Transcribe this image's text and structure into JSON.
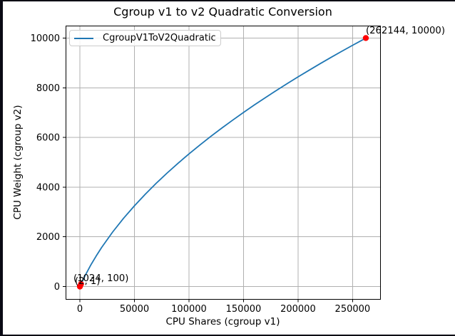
{
  "colors": {
    "frame": "#0a0a14",
    "background": "#ffffff",
    "grid": "#b0b0b0",
    "spine": "#000000",
    "series_line": "#1f77b4",
    "marker": "#ff0000",
    "legend_edge": "#cccccc"
  },
  "chart_data": {
    "type": "line",
    "title": "Cgroup v1 to v2 Quadratic Conversion",
    "xlabel": "CPU Shares (cgroup v1)",
    "ylabel": "CPU Weight (cgroup v2)",
    "grid": true,
    "legend_position": "upper left",
    "xlim": [
      -13107,
      275251
    ],
    "ylim": [
      -500,
      10500
    ],
    "xticks": [
      0,
      50000,
      100000,
      150000,
      200000,
      250000
    ],
    "yticks": [
      0,
      2000,
      4000,
      6000,
      8000,
      10000
    ],
    "series": [
      {
        "name": "CgroupV1ToV2Quadratic",
        "color": "#1f77b4",
        "points": [
          [
            2,
            1
          ],
          [
            5000,
            459
          ],
          [
            10000,
            866
          ],
          [
            15000,
            1236
          ],
          [
            20000,
            1576
          ],
          [
            30000,
            2193
          ],
          [
            40000,
            2746
          ],
          [
            50000,
            3251
          ],
          [
            60000,
            3719
          ],
          [
            70000,
            4158
          ],
          [
            80000,
            4571
          ],
          [
            90000,
            4964
          ],
          [
            100000,
            5339
          ],
          [
            110000,
            5697
          ],
          [
            120000,
            6042
          ],
          [
            130000,
            6374
          ],
          [
            140000,
            6695
          ],
          [
            150000,
            7006
          ],
          [
            160000,
            7308
          ],
          [
            170000,
            7601
          ],
          [
            180000,
            7887
          ],
          [
            190000,
            8165
          ],
          [
            200000,
            8437
          ],
          [
            210000,
            8702
          ],
          [
            220000,
            8961
          ],
          [
            230000,
            9216
          ],
          [
            240000,
            9465
          ],
          [
            250000,
            9709
          ],
          [
            262144,
            10000
          ]
        ]
      }
    ],
    "markers": [
      {
        "x": 2,
        "y": 1,
        "label": "(2, 1)",
        "color": "#ff0000"
      },
      {
        "x": 1024,
        "y": 100,
        "label": "(1024, 100)",
        "color": "#ff0000"
      },
      {
        "x": 262144,
        "y": 10000,
        "label": "(262144, 10000)",
        "color": "#ff0000"
      }
    ]
  }
}
